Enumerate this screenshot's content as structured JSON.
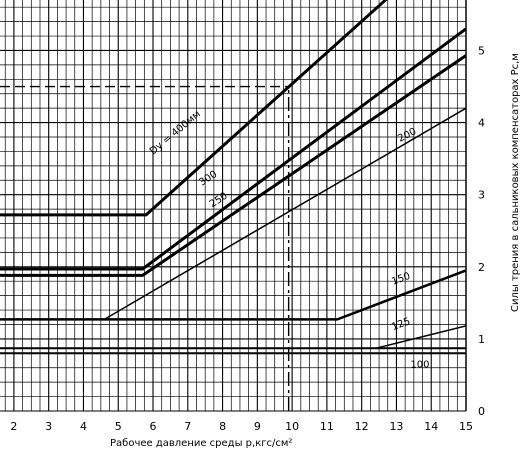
{
  "chart_data": {
    "type": "line",
    "xlabel": "Рабочее давление среды р,кгс/см²",
    "ylabel": "Силы трения в сальниковых компенсаторах Рс,м",
    "xlim": [
      1.6,
      15
    ],
    "ylim": [
      0,
      5.7
    ],
    "x_ticks": [
      "2",
      "3",
      "4",
      "5",
      "6",
      "7",
      "8",
      "9",
      "10",
      "11",
      "12",
      "13",
      "14",
      "15"
    ],
    "y_ticks": [
      "0",
      "1",
      "2",
      "3",
      "4",
      "5"
    ],
    "grid": true,
    "series": [
      {
        "name": "Dy = 400мм",
        "points": [
          [
            1.6,
            2.72
          ],
          [
            5.8,
            2.72
          ],
          [
            12.8,
            5.75
          ]
        ],
        "width": 3
      },
      {
        "name": "300",
        "points": [
          [
            1.6,
            1.97
          ],
          [
            5.7,
            1.97
          ],
          [
            15,
            5.3
          ]
        ],
        "width": 3
      },
      {
        "name": "250",
        "points": [
          [
            1.6,
            1.88
          ],
          [
            5.7,
            1.88
          ],
          [
            15,
            4.93
          ]
        ],
        "width": 3
      },
      {
        "name": "200",
        "points": [
          [
            4.6,
            1.27
          ],
          [
            15,
            4.2
          ]
        ],
        "width": 1.5
      },
      {
        "name": "150",
        "points": [
          [
            1.6,
            1.27
          ],
          [
            11.3,
            1.27
          ],
          [
            15,
            1.95
          ]
        ],
        "width": 2.5
      },
      {
        "name": "125",
        "points": [
          [
            12.4,
            0.87
          ],
          [
            15,
            1.18
          ]
        ],
        "width": 1.5
      },
      {
        "name": "100",
        "points": [
          [
            1.6,
            0.87
          ],
          [
            15,
            0.87
          ]
        ],
        "width": 2
      },
      {
        "name": "",
        "points": [
          [
            1.6,
            0.8
          ],
          [
            15,
            0.8
          ]
        ],
        "width": 2
      }
    ],
    "annotations": [
      {
        "text": "Dy = 400мм",
        "x": 6.0,
        "y": 3.55,
        "angle": -40
      },
      {
        "text": "300",
        "x": 7.4,
        "y": 3.12,
        "angle": -33
      },
      {
        "text": "250",
        "x": 7.7,
        "y": 2.82,
        "angle": -33
      },
      {
        "text": "200",
        "x": 13.1,
        "y": 3.73,
        "angle": -27
      },
      {
        "text": "150",
        "x": 12.9,
        "y": 1.75,
        "angle": -20
      },
      {
        "text": "125",
        "x": 12.9,
        "y": 1.12,
        "angle": -20
      },
      {
        "text": "100",
        "x": 13.4,
        "y": 0.6,
        "angle": 0
      }
    ],
    "reference_lines": [
      {
        "kind": "horizontal",
        "y": 4.5,
        "from_x": 1.6,
        "to_x": 9.9,
        "style": "dashed"
      },
      {
        "kind": "vertical",
        "x": 9.9,
        "from_y": 0,
        "to_y": 4.5,
        "style": "dashdot"
      }
    ]
  }
}
